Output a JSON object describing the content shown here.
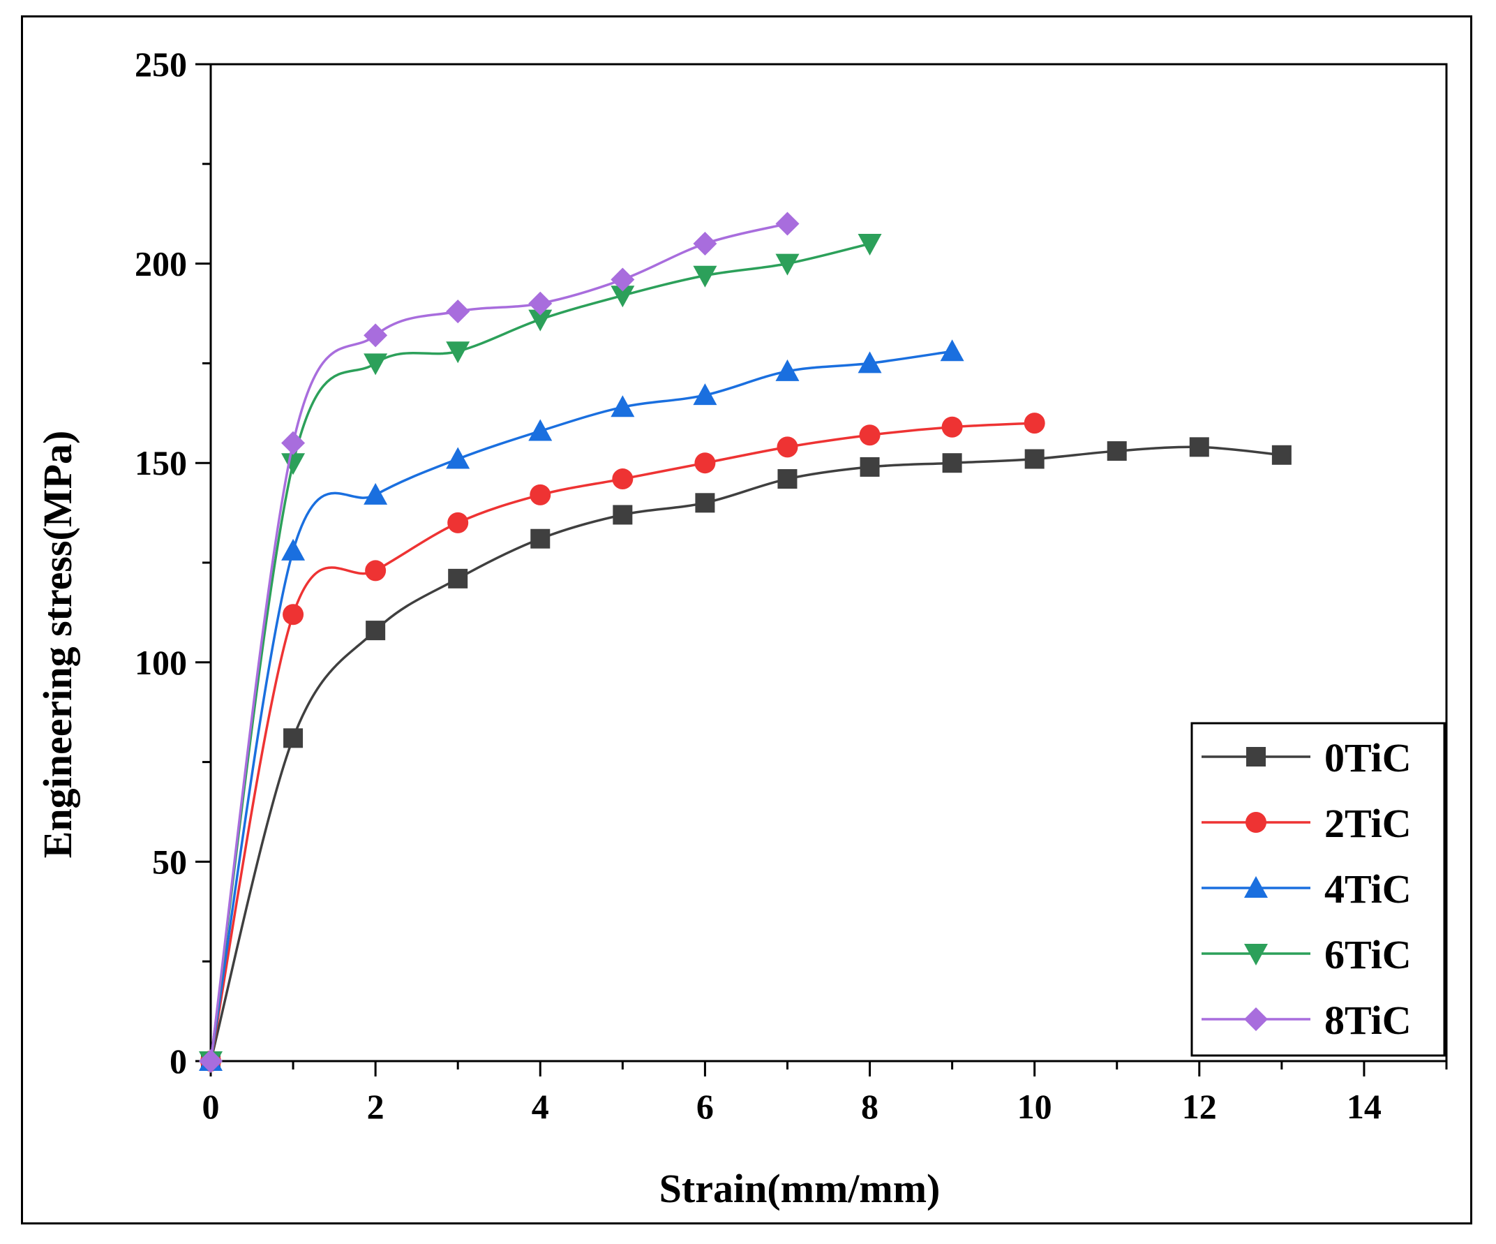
{
  "chart_data": {
    "type": "line",
    "title": "",
    "xlabel": "Strain(mm/mm)",
    "ylabel": "Engineering stress(MPa)",
    "xlim": [
      0,
      15
    ],
    "ylim": [
      0,
      250
    ],
    "xticks": [
      0,
      2,
      4,
      6,
      8,
      10,
      12,
      14
    ],
    "yticks": [
      0,
      50,
      100,
      150,
      200,
      250
    ],
    "grid": false,
    "legend_position": "bottom-right",
    "series": [
      {
        "name": "0TiC",
        "marker": "square",
        "color": "#3f3f3f",
        "x": [
          0,
          1,
          2,
          3,
          4,
          5,
          6,
          7,
          8,
          9,
          10,
          11,
          12,
          13
        ],
        "y": [
          0,
          81,
          108,
          121,
          131,
          137,
          140,
          146,
          149,
          150,
          151,
          153,
          154,
          152
        ]
      },
      {
        "name": "2TiC",
        "marker": "circle",
        "color": "#ee3333",
        "x": [
          0,
          1,
          2,
          3,
          4,
          5,
          6,
          7,
          8,
          9,
          10
        ],
        "y": [
          0,
          112,
          123,
          135,
          142,
          146,
          150,
          154,
          157,
          159,
          160
        ]
      },
      {
        "name": "4TiC",
        "marker": "triangle-up",
        "color": "#1a6fdf",
        "x": [
          0,
          1,
          2,
          3,
          4,
          5,
          6,
          7,
          8,
          9
        ],
        "y": [
          0,
          128,
          142,
          151,
          158,
          164,
          167,
          173,
          175,
          178
        ]
      },
      {
        "name": "6TiC",
        "marker": "triangle-down",
        "color": "#2ca05a",
        "x": [
          0,
          1,
          2,
          3,
          4,
          5,
          6,
          7,
          8
        ],
        "y": [
          0,
          150,
          175,
          178,
          186,
          192,
          197,
          200,
          205
        ]
      },
      {
        "name": "8TiC",
        "marker": "diamond",
        "color": "#a86ddd",
        "x": [
          0,
          1,
          2,
          3,
          4,
          5,
          6,
          7
        ],
        "y": [
          0,
          155,
          182,
          188,
          190,
          196,
          205,
          210
        ]
      }
    ]
  }
}
